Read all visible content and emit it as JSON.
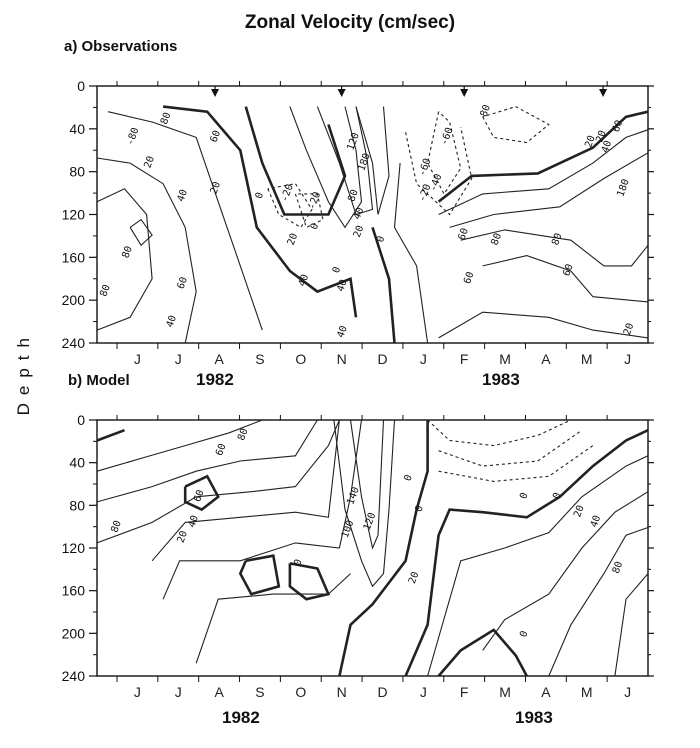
{
  "title": "Zonal Velocity (cm/sec)",
  "y_axis_label": "Depth",
  "panels": [
    {
      "label": "a) Observations",
      "years": [
        "1982",
        "1983"
      ]
    },
    {
      "label": "b) Model",
      "years": [
        "1982",
        "1983"
      ]
    }
  ],
  "chart_data": [
    {
      "type": "contour",
      "panel": "a) Observations",
      "x_months": [
        "J",
        "J",
        "A",
        "S",
        "O",
        "N",
        "D",
        "J",
        "F",
        "M",
        "A",
        "M",
        "J"
      ],
      "y_ticks": [
        0,
        40,
        80,
        120,
        160,
        200,
        240
      ],
      "ylim": [
        0,
        240
      ],
      "y_inverted": true,
      "markers_month_positions": [
        2.4,
        5.5,
        8.5,
        11.9
      ],
      "contour_labels": [
        "-80",
        "20",
        "40",
        "80",
        "60",
        "80",
        "40",
        "80",
        "60",
        "20",
        "0",
        "-20",
        "-20",
        "0",
        "20",
        "40",
        "0",
        "40",
        "120",
        "180",
        "80",
        "40",
        "20",
        "0",
        "-60",
        "-60",
        "-40",
        "-20",
        "20",
        "40",
        "60",
        "60",
        "80",
        "80",
        "20",
        "40",
        "60",
        "180",
        "80",
        "60",
        "20"
      ]
    },
    {
      "type": "contour",
      "panel": "b) Model",
      "x_months": [
        "J",
        "J",
        "A",
        "S",
        "O",
        "N",
        "D",
        "J",
        "F",
        "M",
        "A",
        "M",
        "J"
      ],
      "y_ticks": [
        0,
        40,
        80,
        120,
        160,
        200,
        240
      ],
      "ylim": [
        0,
        240
      ],
      "y_inverted": true,
      "contour_labels": [
        "60",
        "80",
        "60",
        "40",
        "20",
        "80",
        "140",
        "120",
        "100",
        "0",
        "0",
        "0",
        "20",
        "0",
        "0",
        "20",
        "40",
        "80",
        "0"
      ]
    }
  ]
}
